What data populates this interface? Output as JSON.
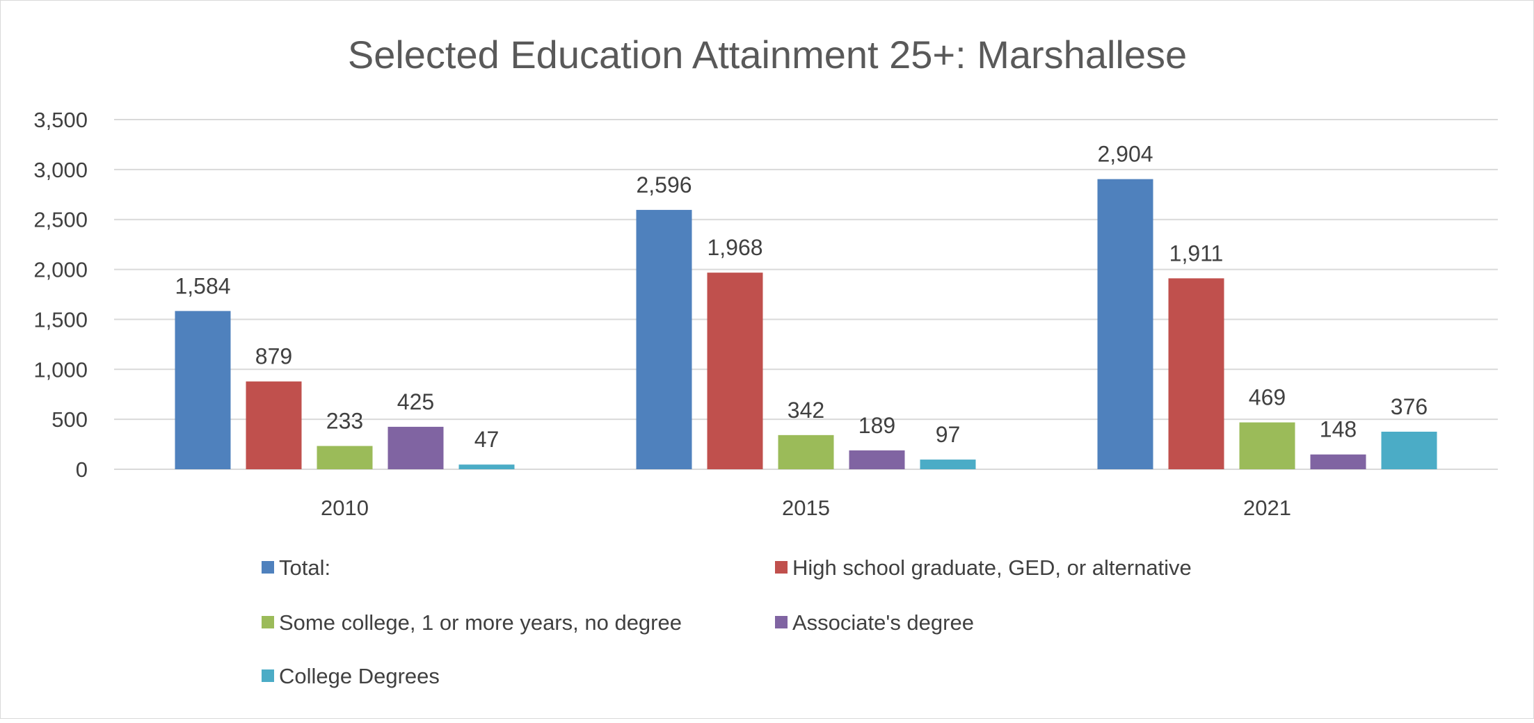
{
  "chart_data": {
    "type": "bar",
    "title": "Selected Education Attainment 25+: Marshallese",
    "categories": [
      "2010",
      "2015",
      "2021"
    ],
    "series": [
      {
        "name": "Total:",
        "color": "#4f81bd",
        "values": [
          1584,
          2596,
          2904
        ],
        "labels": [
          "1,584",
          "2,596",
          "2,904"
        ]
      },
      {
        "name": "High school graduate, GED, or alternative",
        "color": "#c0504d",
        "values": [
          879,
          1968,
          1911
        ],
        "labels": [
          "879",
          "1,968",
          "1,911"
        ]
      },
      {
        "name": "Some college, 1 or more years, no degree",
        "color": "#9bbb59",
        "values": [
          233,
          342,
          469
        ],
        "labels": [
          "233",
          "342",
          "469"
        ]
      },
      {
        "name": "Associate's degree",
        "color": "#8064a2",
        "values": [
          425,
          189,
          148
        ],
        "labels": [
          "425",
          "189",
          "148"
        ]
      },
      {
        "name": "College Degrees",
        "color": "#4bacc6",
        "values": [
          47,
          97,
          376
        ],
        "labels": [
          "47",
          "97",
          "376"
        ]
      }
    ],
    "ylim": [
      0,
      3500
    ],
    "yticks": [
      0,
      500,
      1000,
      1500,
      2000,
      2500,
      3000,
      3500
    ],
    "ytick_labels": [
      "0",
      "500",
      "1,000",
      "1,500",
      "2,000",
      "2,500",
      "3,000",
      "3,500"
    ],
    "grid": true,
    "legend_position": "bottom",
    "xlabel": "",
    "ylabel": ""
  }
}
